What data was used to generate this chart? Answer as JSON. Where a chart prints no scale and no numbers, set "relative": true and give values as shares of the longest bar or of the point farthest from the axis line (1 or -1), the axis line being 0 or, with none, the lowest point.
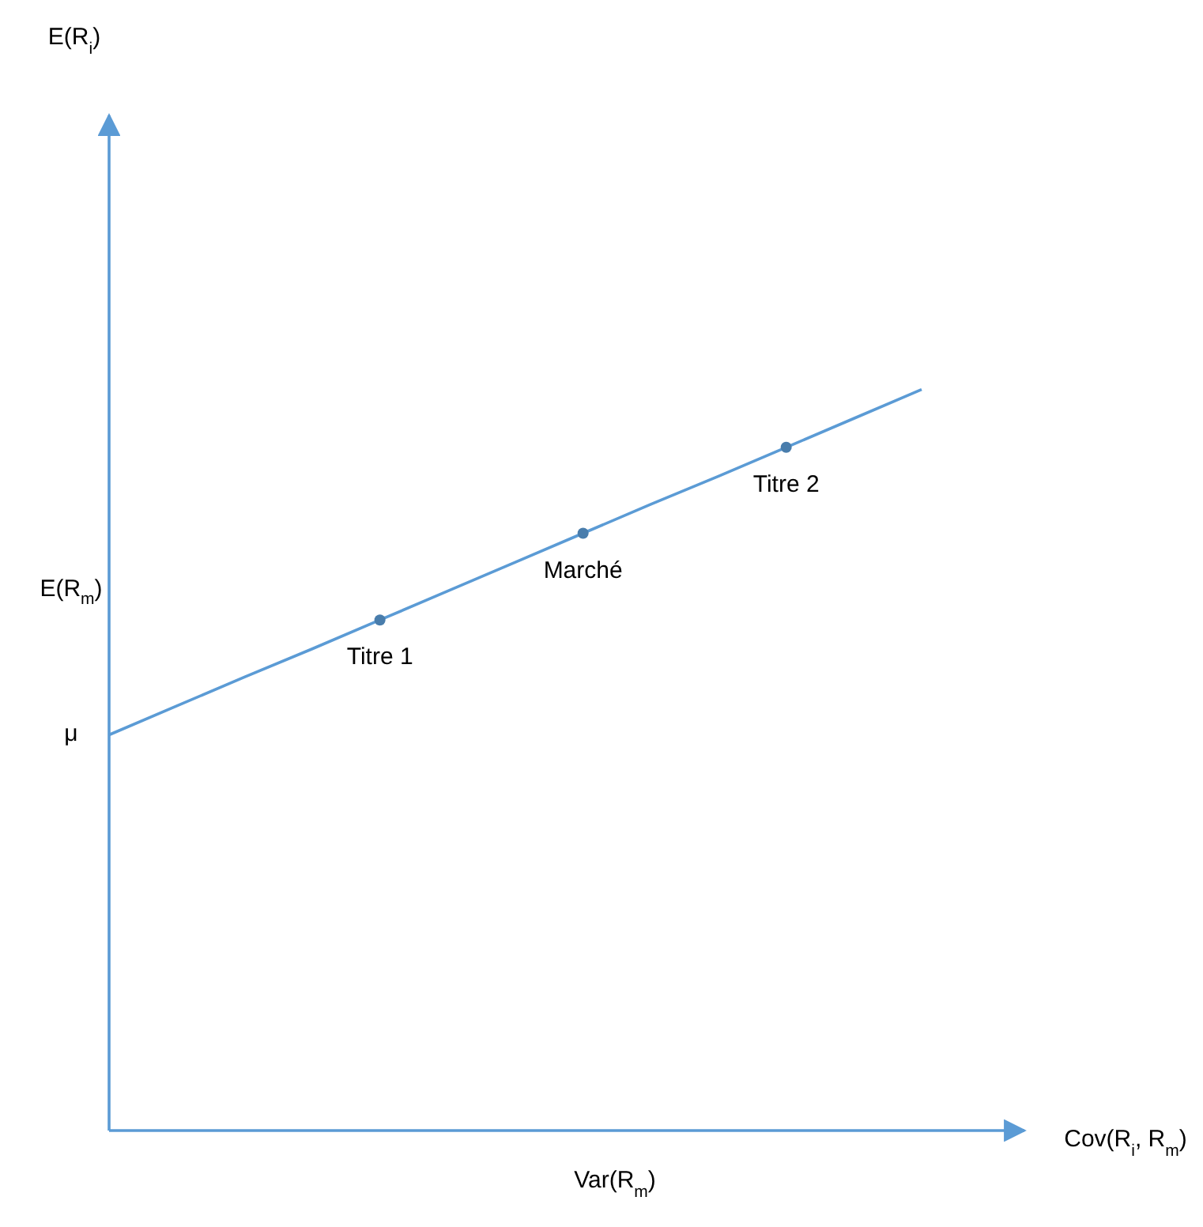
{
  "chart_data": {
    "type": "line",
    "relative": true,
    "xlabel": "Cov(R$_{i}$, R$_{m}$)",
    "categories": [
      null,
      null,
      null,
      null,
      null,
      null,
      null,
      null,
      null,
      null,
      null,
      null,
      null
    ],
    "series": [
      {
        "color": "#5b9bd5",
        "values": [
          0.534,
          0.573,
          0.612,
          0.65,
          0.689,
          0.728,
          0.767,
          0.806,
          0.845,
          0.883,
          0.922,
          0.961,
          1
        ]
      }
    ],
    "annotations": [
      {
        "text": "Titre 1",
        "y": 0.689
      },
      {
        "text": "Marché",
        "y": 0.806
      },
      {
        "text": "Titre 2",
        "y": 0.922
      },
      "E(R$_{i}$)",
      "μ",
      "E(R$_{m}$)",
      "Var(R$_{m}$)"
    ]
  }
}
